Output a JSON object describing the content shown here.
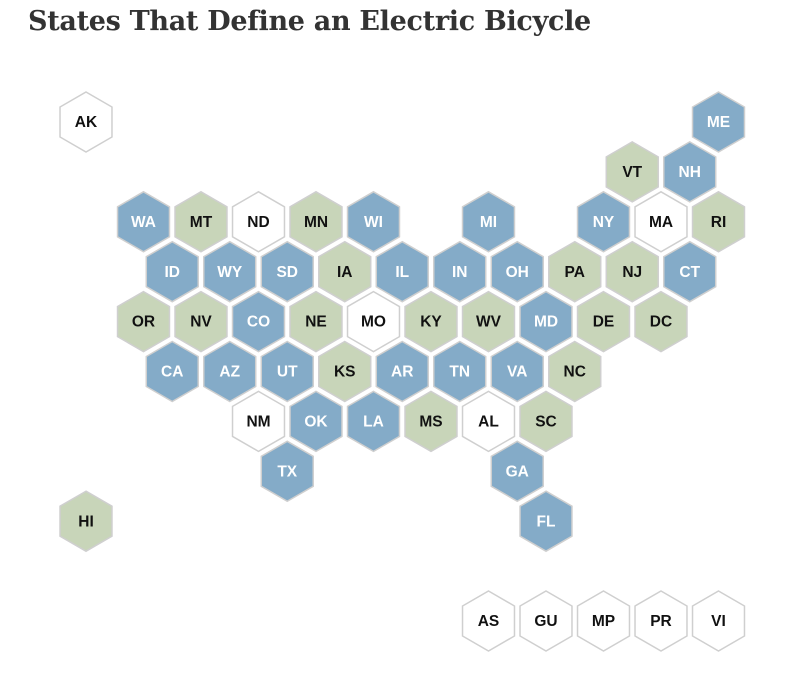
{
  "title": "States That Define an Electric Bicycle",
  "legend": [],
  "colors": {
    "blue": "#84abc8",
    "green": "#c8d5b9",
    "white": "#ffffff",
    "stroke": "#cfcfcf",
    "text_dark": "#111111",
    "text_light": "#ffffff"
  },
  "states": [
    {
      "abbr": "AK",
      "cat": "white",
      "row": 0,
      "col": 0
    },
    {
      "abbr": "ME",
      "cat": "blue",
      "row": 0,
      "col": 11
    },
    {
      "abbr": "VT",
      "cat": "green",
      "row": 1,
      "col": 9.5
    },
    {
      "abbr": "NH",
      "cat": "blue",
      "row": 1,
      "col": 10.5
    },
    {
      "abbr": "WA",
      "cat": "blue",
      "row": 2,
      "col": 1
    },
    {
      "abbr": "MT",
      "cat": "green",
      "row": 2,
      "col": 2
    },
    {
      "abbr": "ND",
      "cat": "white",
      "row": 2,
      "col": 3
    },
    {
      "abbr": "MN",
      "cat": "green",
      "row": 2,
      "col": 4
    },
    {
      "abbr": "WI",
      "cat": "blue",
      "row": 2,
      "col": 5
    },
    {
      "abbr": "MI",
      "cat": "blue",
      "row": 2,
      "col": 7
    },
    {
      "abbr": "NY",
      "cat": "blue",
      "row": 2,
      "col": 9
    },
    {
      "abbr": "MA",
      "cat": "white",
      "row": 2,
      "col": 10
    },
    {
      "abbr": "RI",
      "cat": "green",
      "row": 2,
      "col": 11
    },
    {
      "abbr": "ID",
      "cat": "blue",
      "row": 3,
      "col": 1.5
    },
    {
      "abbr": "WY",
      "cat": "blue",
      "row": 3,
      "col": 2.5
    },
    {
      "abbr": "SD",
      "cat": "blue",
      "row": 3,
      "col": 3.5
    },
    {
      "abbr": "IA",
      "cat": "green",
      "row": 3,
      "col": 4.5
    },
    {
      "abbr": "IL",
      "cat": "blue",
      "row": 3,
      "col": 5.5
    },
    {
      "abbr": "IN",
      "cat": "blue",
      "row": 3,
      "col": 6.5
    },
    {
      "abbr": "OH",
      "cat": "blue",
      "row": 3,
      "col": 7.5
    },
    {
      "abbr": "PA",
      "cat": "green",
      "row": 3,
      "col": 8.5
    },
    {
      "abbr": "NJ",
      "cat": "green",
      "row": 3,
      "col": 9.5
    },
    {
      "abbr": "CT",
      "cat": "blue",
      "row": 3,
      "col": 10.5
    },
    {
      "abbr": "OR",
      "cat": "green",
      "row": 4,
      "col": 1
    },
    {
      "abbr": "NV",
      "cat": "green",
      "row": 4,
      "col": 2
    },
    {
      "abbr": "CO",
      "cat": "blue",
      "row": 4,
      "col": 3
    },
    {
      "abbr": "NE",
      "cat": "green",
      "row": 4,
      "col": 4
    },
    {
      "abbr": "MO",
      "cat": "white",
      "row": 4,
      "col": 5
    },
    {
      "abbr": "KY",
      "cat": "green",
      "row": 4,
      "col": 6
    },
    {
      "abbr": "WV",
      "cat": "green",
      "row": 4,
      "col": 7
    },
    {
      "abbr": "MD",
      "cat": "blue",
      "row": 4,
      "col": 8
    },
    {
      "abbr": "DE",
      "cat": "green",
      "row": 4,
      "col": 9
    },
    {
      "abbr": "DC",
      "cat": "green",
      "row": 4,
      "col": 10
    },
    {
      "abbr": "CA",
      "cat": "blue",
      "row": 5,
      "col": 1.5
    },
    {
      "abbr": "AZ",
      "cat": "blue",
      "row": 5,
      "col": 2.5
    },
    {
      "abbr": "UT",
      "cat": "blue",
      "row": 5,
      "col": 3.5
    },
    {
      "abbr": "KS",
      "cat": "green",
      "row": 5,
      "col": 4.5
    },
    {
      "abbr": "AR",
      "cat": "blue",
      "row": 5,
      "col": 5.5
    },
    {
      "abbr": "TN",
      "cat": "blue",
      "row": 5,
      "col": 6.5
    },
    {
      "abbr": "VA",
      "cat": "blue",
      "row": 5,
      "col": 7.5
    },
    {
      "abbr": "NC",
      "cat": "green",
      "row": 5,
      "col": 8.5
    },
    {
      "abbr": "NM",
      "cat": "white",
      "row": 6,
      "col": 3
    },
    {
      "abbr": "OK",
      "cat": "blue",
      "row": 6,
      "col": 4
    },
    {
      "abbr": "LA",
      "cat": "blue",
      "row": 6,
      "col": 5
    },
    {
      "abbr": "MS",
      "cat": "green",
      "row": 6,
      "col": 6
    },
    {
      "abbr": "AL",
      "cat": "white",
      "row": 6,
      "col": 7
    },
    {
      "abbr": "SC",
      "cat": "green",
      "row": 6,
      "col": 8
    },
    {
      "abbr": "TX",
      "cat": "blue",
      "row": 7,
      "col": 3.5
    },
    {
      "abbr": "GA",
      "cat": "blue",
      "row": 7,
      "col": 7.5
    },
    {
      "abbr": "HI",
      "cat": "green",
      "row": 8,
      "col": 0
    },
    {
      "abbr": "FL",
      "cat": "blue",
      "row": 8,
      "col": 8
    },
    {
      "abbr": "AS",
      "cat": "white",
      "row": 10,
      "col": 7
    },
    {
      "abbr": "GU",
      "cat": "white",
      "row": 10,
      "col": 8
    },
    {
      "abbr": "MP",
      "cat": "white",
      "row": 10,
      "col": 9
    },
    {
      "abbr": "PR",
      "cat": "white",
      "row": 10,
      "col": 10
    },
    {
      "abbr": "VI",
      "cat": "white",
      "row": 10,
      "col": 11
    }
  ]
}
